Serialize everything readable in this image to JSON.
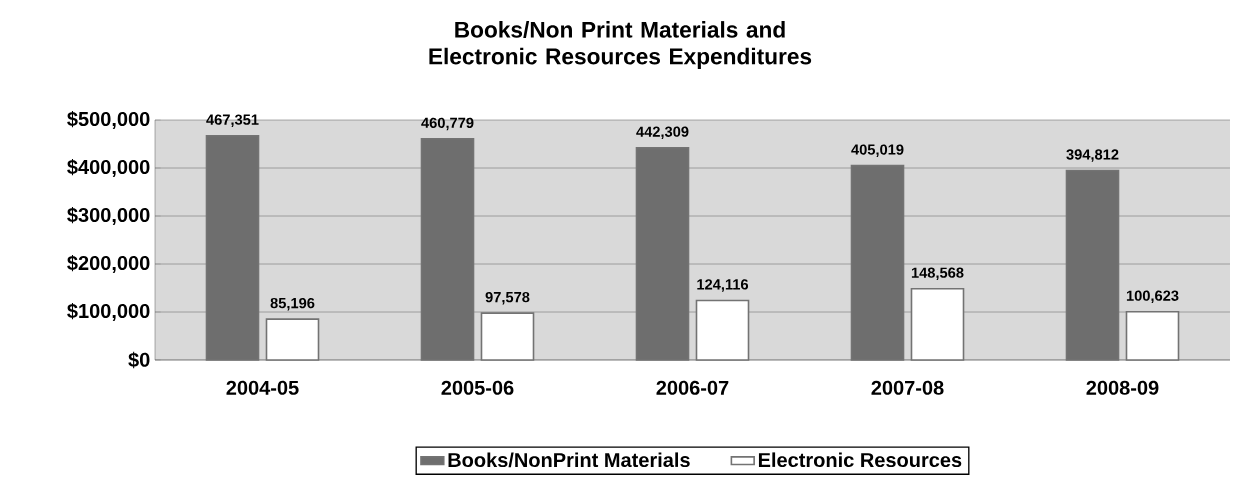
{
  "chart_data": {
    "type": "bar",
    "title": "Books/Non Print Materials and Electronic Resources Expenditures",
    "categories": [
      "2004-05",
      "2005-06",
      "2006-07",
      "2007-08",
      "2008-09"
    ],
    "series": [
      {
        "name": "Books/NonPrint Materials",
        "color": "#6e6e6e",
        "values": [
          467351,
          460779,
          442309,
          405019,
          394812
        ],
        "value_labels": [
          "467,351",
          "460,779",
          "442,309",
          "405,019",
          "394,812"
        ]
      },
      {
        "name": "Electronic Resources",
        "color": "#ffffff",
        "values": [
          85196,
          97578,
          124116,
          148568,
          100623
        ],
        "value_labels": [
          "85,196",
          "97,578",
          "124,116",
          "148,568",
          "100,623"
        ]
      }
    ],
    "ylim": [
      0,
      500000
    ],
    "yticks": [
      {
        "value": 0,
        "label": "$0"
      },
      {
        "value": 100000,
        "label": "$100,000"
      },
      {
        "value": 200000,
        "label": "$200,000"
      },
      {
        "value": 300000,
        "label": "$300,000"
      },
      {
        "value": 400000,
        "label": "$400,000"
      },
      {
        "value": 500000,
        "label": "$500,000"
      }
    ],
    "grid": "y",
    "legend": "bottom"
  }
}
